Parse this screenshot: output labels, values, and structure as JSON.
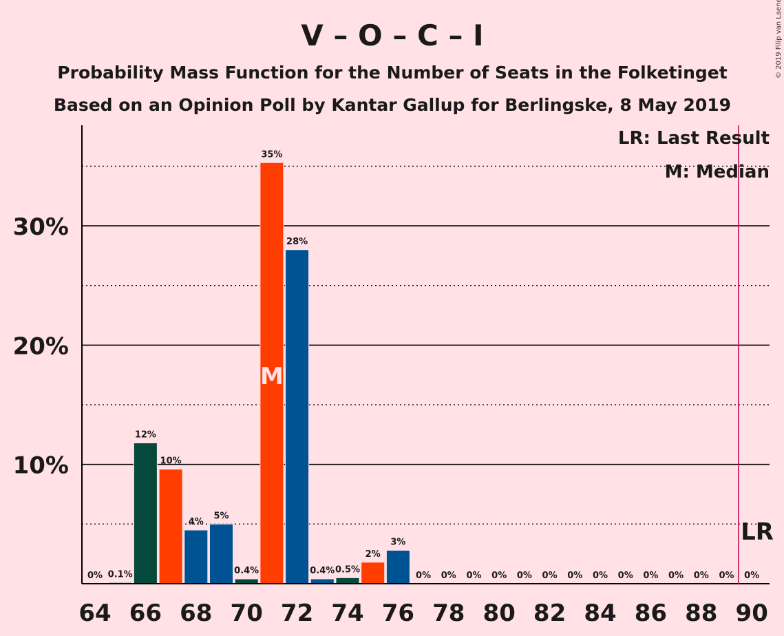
{
  "chart_data": {
    "type": "bar",
    "title": "V – O – C – I",
    "subtitle_1": "Probability Mass Function for the Number of Seats in the Folketinget",
    "subtitle_2": "Based on an Opinion Poll by Kantar Gallup for Berlingske, 8 May 2019",
    "copyright": "© 2019 Filip van Laenen",
    "legend": {
      "last_result": "LR: Last Result",
      "median": "M: Median"
    },
    "median_marker": "M",
    "last_result_marker": "LR",
    "last_result_seat": 89.5,
    "median_seat": 71,
    "ylim": [
      0,
      38
    ],
    "yticks": [
      {
        "value": 10,
        "label": "10%"
      },
      {
        "value": 20,
        "label": "20%"
      },
      {
        "value": 30,
        "label": "30%"
      }
    ],
    "minor_grid": [
      5,
      15,
      25,
      35
    ],
    "grid": true,
    "legend_position": "top-right",
    "xticks": [
      64,
      66,
      68,
      70,
      72,
      74,
      76,
      78,
      80,
      82,
      84,
      86,
      88,
      90
    ],
    "bars": [
      {
        "seats": 64,
        "value": 0,
        "label": "0%",
        "color": "#00594F"
      },
      {
        "seats": 65,
        "value": 0.1,
        "label": "0.1%",
        "color": "#00594F"
      },
      {
        "seats": 66,
        "value": 11.8,
        "label": "12%",
        "color": "#04493A"
      },
      {
        "seats": 67,
        "value": 9.6,
        "label": "10%",
        "color": "#FF3D00"
      },
      {
        "seats": 68,
        "value": 4.5,
        "label": "4%",
        "color": "#005393"
      },
      {
        "seats": 69,
        "value": 5.0,
        "label": "5%",
        "color": "#005393"
      },
      {
        "seats": 70,
        "value": 0.4,
        "label": "0.4%",
        "color": "#04493A"
      },
      {
        "seats": 71,
        "value": 35.3,
        "label": "35%",
        "color": "#FF3D00"
      },
      {
        "seats": 72,
        "value": 28.0,
        "label": "28%",
        "color": "#005393"
      },
      {
        "seats": 73,
        "value": 0.4,
        "label": "0.4%",
        "color": "#005393"
      },
      {
        "seats": 74,
        "value": 0.5,
        "label": "0.5%",
        "color": "#04493A"
      },
      {
        "seats": 75,
        "value": 1.8,
        "label": "2%",
        "color": "#FF3D00"
      },
      {
        "seats": 76,
        "value": 2.8,
        "label": "3%",
        "color": "#005393"
      },
      {
        "seats": 77,
        "value": 0,
        "label": "0%",
        "color": "#005393"
      },
      {
        "seats": 78,
        "value": 0,
        "label": "0%",
        "color": "#005393"
      },
      {
        "seats": 79,
        "value": 0,
        "label": "0%",
        "color": "#005393"
      },
      {
        "seats": 80,
        "value": 0,
        "label": "0%",
        "color": "#005393"
      },
      {
        "seats": 81,
        "value": 0,
        "label": "0%",
        "color": "#005393"
      },
      {
        "seats": 82,
        "value": 0,
        "label": "0%",
        "color": "#005393"
      },
      {
        "seats": 83,
        "value": 0,
        "label": "0%",
        "color": "#005393"
      },
      {
        "seats": 84,
        "value": 0,
        "label": "0%",
        "color": "#005393"
      },
      {
        "seats": 85,
        "value": 0,
        "label": "0%",
        "color": "#005393"
      },
      {
        "seats": 86,
        "value": 0,
        "label": "0%",
        "color": "#005393"
      },
      {
        "seats": 87,
        "value": 0,
        "label": "0%",
        "color": "#005393"
      },
      {
        "seats": 88,
        "value": 0,
        "label": "0%",
        "color": "#005393"
      },
      {
        "seats": 89,
        "value": 0,
        "label": "0%",
        "color": "#005393"
      },
      {
        "seats": 90,
        "value": 0,
        "label": "0%",
        "color": "#005393"
      }
    ],
    "colors": {
      "background": "#FFE1E6",
      "last_result_line": "#C2185B",
      "grid_major": "#000000",
      "grid_minor": "#000000"
    }
  }
}
